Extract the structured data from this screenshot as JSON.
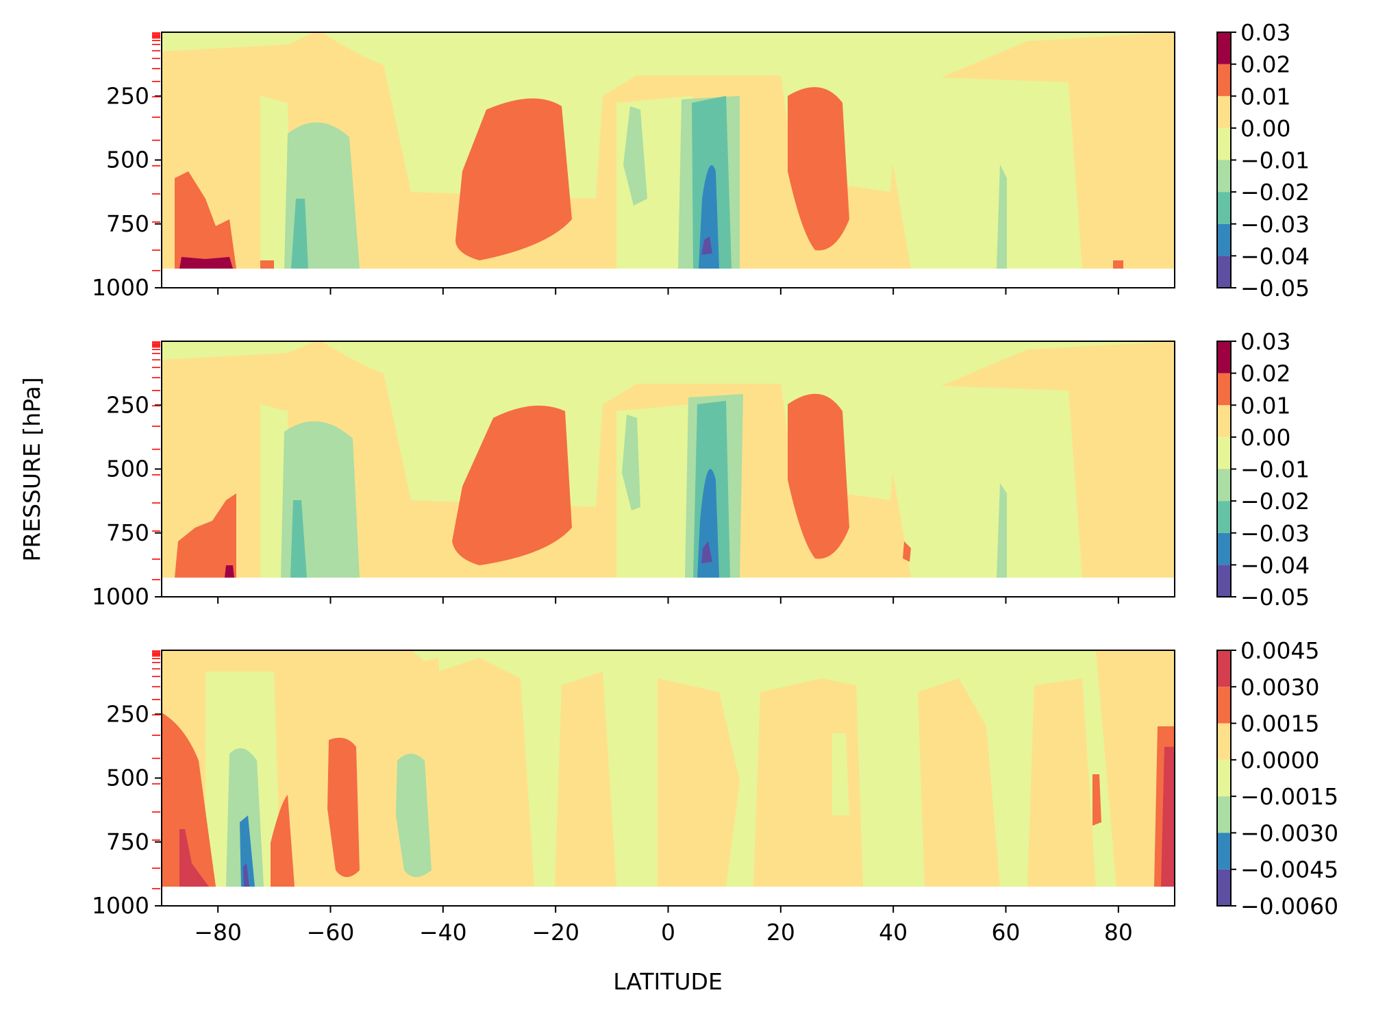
{
  "figure": {
    "ylabel": "PRESSURE [hPa]",
    "xlabel": "LATITUDE"
  },
  "chart_data": [
    {
      "type": "heatmap",
      "subtype": "filled-contour",
      "panel": "top",
      "x_ticks": [
        -80,
        -60,
        -40,
        -20,
        0,
        20,
        40,
        60,
        80
      ],
      "x_tick_labels": [
        "−80",
        "−60",
        "−40",
        "−20",
        "0",
        "20",
        "40",
        "60",
        "80"
      ],
      "y_ticks": [
        250,
        500,
        750,
        1000
      ],
      "y_tick_labels": [
        "250",
        "500",
        "750",
        "1000"
      ],
      "xlim": [
        -90,
        90
      ],
      "ylim": [
        1000,
        0
      ],
      "y_inverted": true,
      "model_level_markers_color": "#ff0000",
      "colorbar": {
        "levels": [
          -0.05,
          -0.04,
          -0.03,
          -0.02,
          -0.01,
          0.0,
          0.01,
          0.02,
          0.03
        ],
        "tick_labels": [
          "−0.05",
          "−0.04",
          "−0.03",
          "−0.02",
          "−0.01",
          "0.00",
          "0.01",
          "0.02",
          "0.03"
        ],
        "colors": [
          "#5e4fa2",
          "#3288bd",
          "#66c2a5",
          "#abdda4",
          "#e6f598",
          "#fee08b",
          "#f46d43",
          "#9e0142"
        ]
      },
      "features": [
        {
          "lat_range": [
            -70,
            -54
          ],
          "p_range": [
            330,
            930
          ],
          "level": -0.02
        },
        {
          "lat_range": [
            -38,
            -17
          ],
          "p_range": [
            260,
            900
          ],
          "level": 0.02
        },
        {
          "lat_range": [
            3,
            10
          ],
          "p_range": [
            240,
            930
          ],
          "level": -0.03
        },
        {
          "lat_range": [
            5,
            8
          ],
          "p_range": [
            500,
            930
          ],
          "level": -0.04
        },
        {
          "lat_range": [
            19,
            31
          ],
          "p_range": [
            210,
            860
          ],
          "level": 0.02
        },
        {
          "lat_range": [
            -89,
            -77
          ],
          "p_range": [
            540,
            930
          ],
          "level": 0.02
        }
      ]
    },
    {
      "type": "heatmap",
      "subtype": "filled-contour",
      "panel": "middle",
      "x_ticks": [
        -80,
        -60,
        -40,
        -20,
        0,
        20,
        40,
        60,
        80
      ],
      "x_tick_labels": [
        "−80",
        "−60",
        "−40",
        "−20",
        "0",
        "20",
        "40",
        "60",
        "80"
      ],
      "y_ticks": [
        250,
        500,
        750,
        1000
      ],
      "y_tick_labels": [
        "250",
        "500",
        "750",
        "1000"
      ],
      "xlim": [
        -90,
        90
      ],
      "ylim": [
        1000,
        0
      ],
      "y_inverted": true,
      "model_level_markers_color": "#ff0000",
      "colorbar": {
        "levels": [
          -0.05,
          -0.04,
          -0.03,
          -0.02,
          -0.01,
          0.0,
          0.01,
          0.02,
          0.03
        ],
        "tick_labels": [
          "−0.05",
          "−0.04",
          "−0.03",
          "−0.02",
          "−0.01",
          "0.00",
          "0.01",
          "0.02",
          "0.03"
        ],
        "colors": [
          "#5e4fa2",
          "#3288bd",
          "#66c2a5",
          "#abdda4",
          "#e6f598",
          "#fee08b",
          "#f46d43",
          "#9e0142"
        ]
      },
      "features": [
        {
          "lat_range": [
            -70,
            -54
          ],
          "p_range": [
            310,
            930
          ],
          "level": -0.02
        },
        {
          "lat_range": [
            -38,
            -17
          ],
          "p_range": [
            240,
            900
          ],
          "level": 0.02
        },
        {
          "lat_range": [
            3,
            10
          ],
          "p_range": [
            230,
            930
          ],
          "level": -0.03
        },
        {
          "lat_range": [
            5,
            8
          ],
          "p_range": [
            500,
            930
          ],
          "level": -0.04
        },
        {
          "lat_range": [
            19,
            31
          ],
          "p_range": [
            200,
            860
          ],
          "level": 0.02
        },
        {
          "lat_range": [
            -89,
            -77
          ],
          "p_range": [
            600,
            930
          ],
          "level": 0.02
        }
      ]
    },
    {
      "type": "heatmap",
      "subtype": "filled-contour",
      "panel": "bottom",
      "x_ticks": [
        -80,
        -60,
        -40,
        -20,
        0,
        20,
        40,
        60,
        80
      ],
      "x_tick_labels": [
        "−80",
        "−60",
        "−40",
        "−20",
        "0",
        "20",
        "40",
        "60",
        "80"
      ],
      "y_ticks": [
        250,
        500,
        750,
        1000
      ],
      "y_tick_labels": [
        "250",
        "500",
        "750",
        "1000"
      ],
      "xlim": [
        -90,
        90
      ],
      "ylim": [
        1000,
        0
      ],
      "y_inverted": true,
      "model_level_markers_color": "#ff0000",
      "colorbar": {
        "levels": [
          -0.006,
          -0.0045,
          -0.003,
          -0.0015,
          0.0,
          0.0015,
          0.003,
          0.0045
        ],
        "tick_labels": [
          "−0.0060",
          "−0.0045",
          "−0.0030",
          "−0.0015",
          "0.0000",
          "0.0015",
          "0.0030",
          "0.0045"
        ],
        "colors": [
          "#5e4fa2",
          "#3288bd",
          "#abdda4",
          "#e6f598",
          "#fee08b",
          "#f46d43",
          "#d53e4f"
        ]
      },
      "features": [
        {
          "lat_range": [
            -90,
            -80
          ],
          "p_range": [
            250,
            930
          ],
          "level": 0.003
        },
        {
          "lat_range": [
            -79,
            -71
          ],
          "p_range": [
            410,
            930
          ],
          "level": -0.0015
        },
        {
          "lat_range": [
            -62,
            -56
          ],
          "p_range": [
            350,
            880
          ],
          "level": 0.0015
        },
        {
          "lat_range": [
            -50,
            -42
          ],
          "p_range": [
            440,
            890
          ],
          "level": -0.0015
        },
        {
          "lat_range": [
            86,
            90
          ],
          "p_range": [
            300,
            930
          ],
          "level": 0.0015
        }
      ]
    }
  ]
}
